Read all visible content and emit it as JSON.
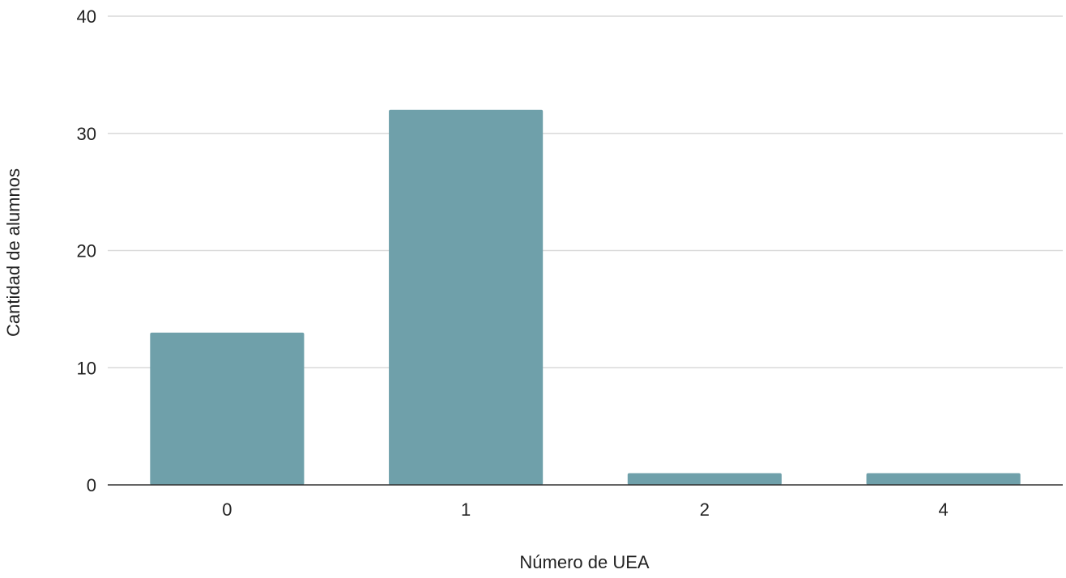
{
  "chart_data": {
    "type": "bar",
    "title": "",
    "xlabel": "Número de UEA",
    "ylabel": "Cantidad de alumnos",
    "categories": [
      "0",
      "1",
      "2",
      "4"
    ],
    "values": [
      13,
      32,
      1,
      1
    ],
    "ylim": [
      0,
      40
    ],
    "yticks": [
      "0",
      "10",
      "20",
      "30",
      "40"
    ],
    "grid": true,
    "legend": "none",
    "bar_color": "#6fa0aa",
    "grid_color": "#d9d9d9",
    "axis_color": "#333333"
  }
}
